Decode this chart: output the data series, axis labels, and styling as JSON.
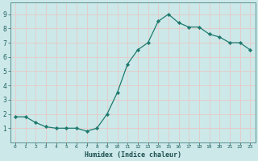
{
  "x": [
    0,
    1,
    2,
    3,
    4,
    5,
    6,
    7,
    8,
    9,
    10,
    11,
    12,
    13,
    14,
    15,
    16,
    17,
    18,
    19,
    20,
    21,
    22,
    23
  ],
  "y": [
    1.8,
    1.8,
    1.4,
    1.1,
    1.0,
    1.0,
    1.0,
    0.8,
    1.0,
    2.0,
    3.5,
    5.5,
    6.5,
    7.0,
    8.5,
    9.0,
    8.4,
    8.1,
    8.1,
    7.6,
    7.4,
    7.0,
    7.0,
    6.5
  ],
  "xlabel": "Humidex (Indice chaleur)",
  "xlim": [
    -0.5,
    23.5
  ],
  "ylim": [
    0.0,
    9.8
  ],
  "yticks": [
    1,
    2,
    3,
    4,
    5,
    6,
    7,
    8,
    9
  ],
  "xticks": [
    0,
    1,
    2,
    3,
    4,
    5,
    6,
    7,
    8,
    9,
    10,
    11,
    12,
    13,
    14,
    15,
    16,
    17,
    18,
    19,
    20,
    21,
    22,
    23
  ],
  "line_color": "#1e7a6e",
  "marker_color": "#1e7a6e",
  "bg_color": "#cce8e8",
  "grid_color": "#e8c8c8",
  "axes_bg": "#cce8e8",
  "tick_color": "#1e6060",
  "xlabel_color": "#1e5050"
}
